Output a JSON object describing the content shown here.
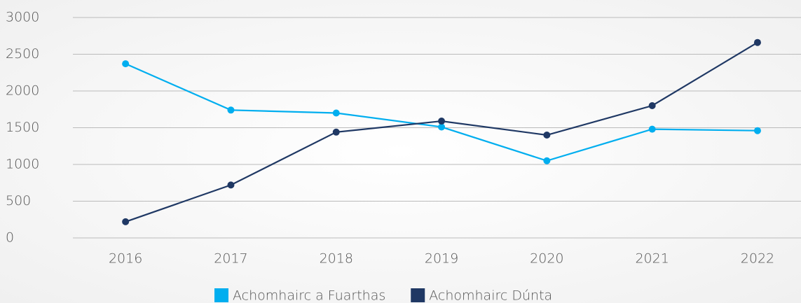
{
  "chart_data": {
    "type": "line",
    "categories": [
      "2016",
      "2017",
      "2018",
      "2019",
      "2020",
      "2021",
      "2022"
    ],
    "series": [
      {
        "name": "Achomhairc a Fuarthas",
        "color": "#00aeef",
        "values": [
          2370,
          1740,
          1700,
          1510,
          1050,
          1480,
          1460
        ]
      },
      {
        "name": "Achomhairc Dúnta",
        "color": "#1f3864",
        "values": [
          220,
          720,
          1440,
          1590,
          1400,
          1800,
          2660
        ]
      }
    ],
    "ylim": [
      0,
      3000
    ],
    "yticks": [
      0,
      500,
      1000,
      1500,
      2000,
      2500,
      3000
    ],
    "grid": true,
    "legend": "bottom"
  }
}
